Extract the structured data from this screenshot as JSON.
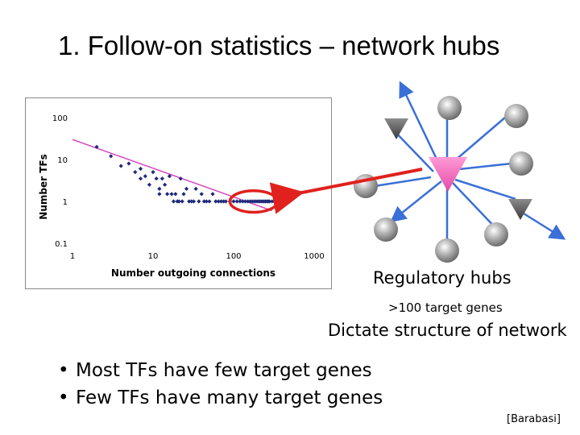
{
  "slide": {
    "title": "1. Follow-on statistics – network hubs",
    "regulatory_hubs": "Regulatory hubs",
    "target_genes": ">100 target genes",
    "dictate": "Dictate structure of network",
    "bullets": [
      "Most TFs have few target genes",
      "Few TFs have many target genes"
    ],
    "citation": "[Barabasi]"
  },
  "chart_data": {
    "type": "scatter",
    "title": "",
    "xlabel": "Number outgoing connections",
    "ylabel": "Number TFs",
    "x_scale": "log",
    "y_scale": "log",
    "xlim": [
      1,
      1000
    ],
    "ylim": [
      0.1,
      100
    ],
    "xticks": [
      "1",
      "10",
      "100",
      "1000"
    ],
    "yticks": [
      "100",
      "10",
      "1",
      "0.1"
    ],
    "grid": false,
    "legend": "none",
    "colors": {
      "points": "#1f2a7a",
      "fit": "#d43fbf",
      "highlight": "#e0211d"
    },
    "series": [
      {
        "x": [
          2,
          3,
          4,
          5,
          6,
          7,
          7,
          8,
          9,
          10,
          11,
          12,
          12,
          13,
          14,
          15,
          16,
          17,
          18,
          19,
          20,
          21,
          22,
          23,
          24,
          26,
          28,
          30,
          32,
          34,
          37,
          40,
          43,
          46,
          50,
          55,
          60,
          65,
          70,
          75,
          80,
          90,
          100,
          110,
          120,
          130,
          140,
          150,
          160,
          170,
          180,
          190,
          200,
          210,
          220,
          230,
          240,
          250,
          260,
          270,
          280,
          300,
          320
        ],
        "y": [
          20,
          12,
          7,
          8,
          5,
          6,
          3.5,
          4,
          2.5,
          5,
          3.5,
          2,
          1.5,
          3.5,
          2.5,
          1.5,
          4,
          1.5,
          1,
          1.5,
          1,
          1,
          3.5,
          1,
          1.5,
          2,
          1,
          1,
          1,
          2,
          1,
          1.5,
          1,
          1,
          1,
          1.5,
          1,
          1,
          1,
          1,
          1,
          1,
          1,
          1,
          1,
          1,
          1,
          1,
          1,
          1,
          1,
          1,
          1,
          1,
          1,
          1,
          1,
          1,
          1,
          1,
          1,
          1,
          1
        ]
      }
    ],
    "fit_line": {
      "x": [
        1,
        300
      ],
      "y": [
        30,
        0.6
      ]
    },
    "hub_circle": {
      "x": [
        90,
        350
      ],
      "y": [
        0.55,
        1.8
      ]
    }
  }
}
